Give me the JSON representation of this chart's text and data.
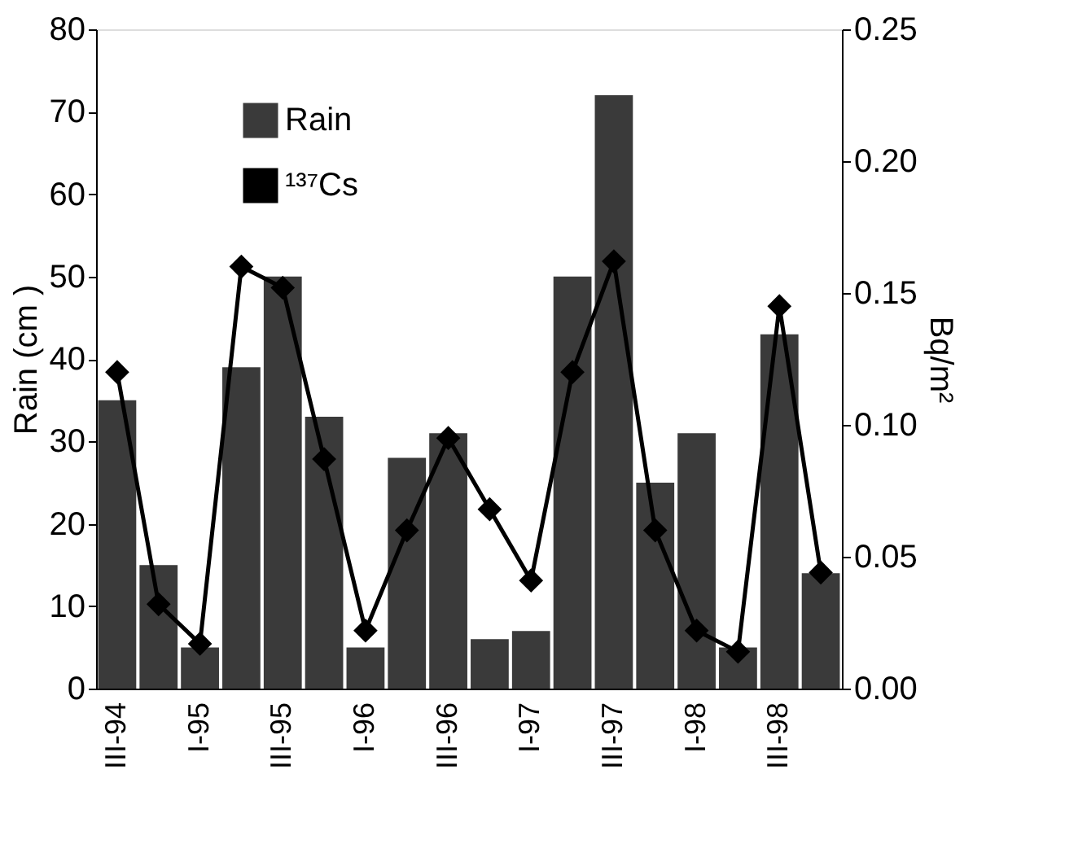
{
  "chart_data": {
    "type": "bar",
    "categories": [
      "III-94",
      null,
      "I-95",
      null,
      "III-95",
      null,
      "I-96",
      null,
      "III-96",
      null,
      "I-97",
      null,
      "III-97",
      null,
      "I-98",
      null,
      "III-98",
      null
    ],
    "series": [
      {
        "name": "Rain",
        "color": "#3a3a3a",
        "values": [
          35,
          15,
          5,
          39,
          50,
          33,
          5,
          28,
          31,
          6,
          7,
          50,
          72,
          25,
          31,
          5,
          43,
          14
        ]
      },
      {
        "name": "¹³⁷Cs",
        "type": "line",
        "axis": "y2",
        "color": "#000000",
        "marker": "diamond",
        "values": [
          0.12,
          0.032,
          0.017,
          0.16,
          0.152,
          0.087,
          0.022,
          0.06,
          0.095,
          0.068,
          0.041,
          0.12,
          0.162,
          0.06,
          0.022,
          0.014,
          0.145,
          0.044
        ]
      }
    ],
    "ylabel": "Rain (cm )",
    "y2label": "Bq/m²",
    "ylim": [
      0,
      80
    ],
    "yticks": [
      0,
      10,
      20,
      30,
      40,
      50,
      60,
      70,
      80
    ],
    "y2lim": [
      0,
      0.25
    ],
    "y2ticks": [
      {
        "value": 0,
        "label": "0.00"
      },
      {
        "value": 0.05,
        "label": "0.05"
      },
      {
        "value": 0.1,
        "label": "0.10"
      },
      {
        "value": 0.15,
        "label": "0.15"
      },
      {
        "value": 0.2,
        "label": "0.20"
      },
      {
        "value": 0.25,
        "label": "0.25"
      }
    ],
    "grid": false,
    "legend": "top left"
  }
}
